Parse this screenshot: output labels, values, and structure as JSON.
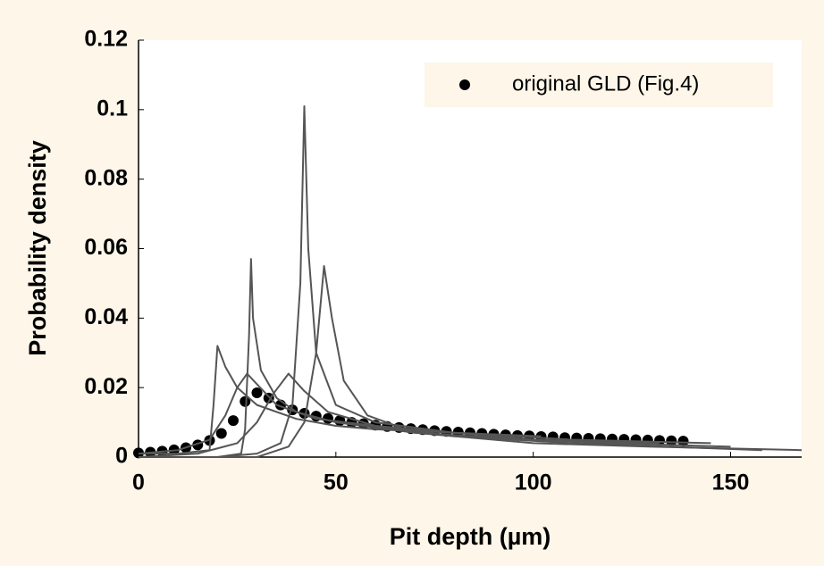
{
  "chart_data": {
    "type": "line",
    "x_label": "Pit depth (µm)",
    "y_label": "Probability density",
    "xlim": [
      0,
      168
    ],
    "ylim": [
      0,
      0.12
    ],
    "xticks": [
      0,
      50,
      100,
      150
    ],
    "yticks": [
      0,
      0.02,
      0.04,
      0.06,
      0.08,
      0.1,
      0.12
    ],
    "grid": false,
    "legend": "upper right",
    "series": [
      {
        "name": "original GLD (Fig.4)",
        "kind": "scatter",
        "color": "#000000",
        "x": [
          0,
          3,
          6,
          9,
          12,
          15,
          18,
          21,
          24,
          27,
          30,
          33,
          36,
          39,
          42,
          45,
          48,
          51,
          54,
          57,
          60,
          63,
          66,
          69,
          72,
          75,
          78,
          81,
          84,
          87,
          90,
          93,
          96,
          99,
          102,
          105,
          108,
          111,
          114,
          117,
          120,
          123,
          126,
          129,
          132,
          135,
          138
        ],
        "values": [
          0.0012,
          0.0014,
          0.0017,
          0.0021,
          0.0027,
          0.0035,
          0.0048,
          0.0068,
          0.0105,
          0.016,
          0.0185,
          0.017,
          0.015,
          0.0136,
          0.0126,
          0.0118,
          0.0111,
          0.0105,
          0.01,
          0.0096,
          0.0092,
          0.0088,
          0.0085,
          0.0082,
          0.0079,
          0.0076,
          0.0074,
          0.0072,
          0.007,
          0.0068,
          0.0066,
          0.0064,
          0.0062,
          0.0061,
          0.0059,
          0.0058,
          0.0056,
          0.0055,
          0.0054,
          0.0053,
          0.0052,
          0.0051,
          0.005,
          0.0049,
          0.0048,
          0.0047,
          0.0046
        ]
      },
      {
        "kind": "line",
        "color": "#555555",
        "x": [
          0,
          10,
          18,
          19,
          20,
          22,
          25,
          30,
          40,
          50,
          60,
          80,
          102
        ],
        "values": [
          0.001,
          0.001,
          0.002,
          0.015,
          0.032,
          0.026,
          0.02,
          0.015,
          0.011,
          0.009,
          0.008,
          0.007,
          0.006
        ]
      },
      {
        "kind": "line",
        "color": "#555555",
        "x": [
          0,
          20,
          26,
          27,
          28,
          28.5,
          29,
          31,
          35,
          40,
          50,
          70,
          100,
          132
        ],
        "values": [
          0,
          0,
          0.001,
          0.008,
          0.035,
          0.057,
          0.04,
          0.025,
          0.017,
          0.013,
          0.01,
          0.007,
          0.005,
          0.004
        ]
      },
      {
        "kind": "line",
        "color": "#555555",
        "x": [
          0,
          20,
          30,
          36,
          39,
          41,
          42,
          43,
          45,
          50,
          60,
          80,
          100,
          120,
          150
        ],
        "values": [
          0,
          0,
          0.001,
          0.004,
          0.015,
          0.05,
          0.101,
          0.06,
          0.03,
          0.015,
          0.01,
          0.007,
          0.005,
          0.004,
          0.003
        ]
      },
      {
        "kind": "line",
        "color": "#555555",
        "x": [
          0,
          30,
          38,
          42,
          45,
          47,
          49,
          52,
          58,
          70,
          100,
          130,
          168
        ],
        "values": [
          0,
          0,
          0.003,
          0.01,
          0.03,
          0.055,
          0.04,
          0.022,
          0.012,
          0.007,
          0.004,
          0.003,
          0.002
        ]
      },
      {
        "kind": "line",
        "color": "#555555",
        "x": [
          0,
          10,
          18,
          22,
          25,
          27.5,
          30,
          35,
          45,
          60,
          80,
          110,
          145
        ],
        "values": [
          0.001,
          0.002,
          0.005,
          0.012,
          0.02,
          0.024,
          0.021,
          0.015,
          0.011,
          0.009,
          0.007,
          0.005,
          0.004
        ]
      },
      {
        "kind": "line",
        "color": "#555555",
        "x": [
          0,
          15,
          25,
          30,
          34,
          38,
          42,
          48,
          60,
          80,
          110,
          158
        ],
        "values": [
          0,
          0.001,
          0.004,
          0.01,
          0.018,
          0.024,
          0.019,
          0.013,
          0.009,
          0.006,
          0.004,
          0.002
        ]
      }
    ]
  }
}
